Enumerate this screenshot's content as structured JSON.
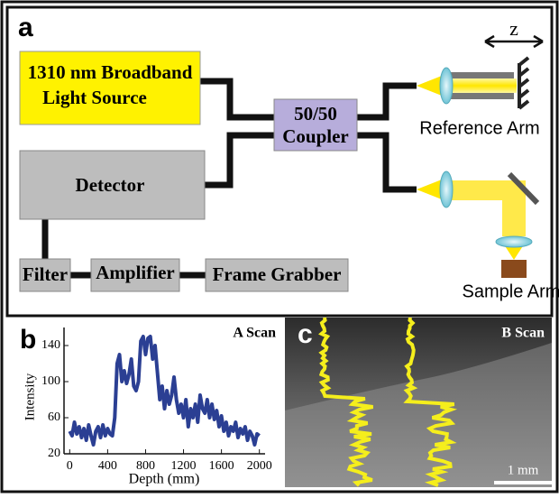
{
  "panel_a": {
    "label": "a",
    "nodes": [
      {
        "label": [
          "1310 nm Broadband",
          "Light Source"
        ]
      },
      {
        "label": [
          "50/50",
          "Coupler"
        ]
      },
      {
        "label": [
          "Detector"
        ]
      },
      {
        "label": [
          "Filter"
        ]
      },
      {
        "label": [
          "Amplifier"
        ]
      },
      {
        "label": [
          "Frame Grabber"
        ]
      }
    ],
    "z_label": "z",
    "reference_arm": "Reference Arm",
    "sample_arm": "Sample Arm"
  },
  "panel_b": {
    "label": "b"
  },
  "chart_data": {
    "type": "line",
    "title": "A Scan",
    "x_label": "Depth (mm)",
    "y_label": "Intensity",
    "x": [
      0,
      25,
      50,
      75,
      100,
      125,
      150,
      175,
      200,
      225,
      250,
      275,
      300,
      325,
      350,
      375,
      400,
      425,
      450,
      475,
      500,
      525,
      550,
      575,
      600,
      625,
      650,
      675,
      700,
      725,
      750,
      775,
      800,
      825,
      850,
      875,
      900,
      925,
      950,
      975,
      1000,
      1025,
      1050,
      1075,
      1100,
      1125,
      1150,
      1175,
      1200,
      1225,
      1250,
      1275,
      1300,
      1325,
      1350,
      1375,
      1400,
      1425,
      1450,
      1475,
      1500,
      1525,
      1550,
      1575,
      1600,
      1625,
      1650,
      1675,
      1700,
      1725,
      1750,
      1775,
      1800,
      1825,
      1850,
      1875,
      1900,
      1925,
      1950,
      1975,
      2000
    ],
    "series": [
      {
        "color": "#2b3f93",
        "values": [
          45,
          40,
          55,
          42,
          50,
          38,
          48,
          35,
          52,
          40,
          30,
          45,
          50,
          38,
          52,
          40,
          48,
          42,
          40,
          60,
          120,
          130,
          100,
          112,
          98,
          108,
          125,
          95,
          90,
          100,
          145,
          150,
          130,
          148,
          150,
          125,
          140,
          110,
          80,
          95,
          70,
          90,
          75,
          85,
          105,
          80,
          65,
          75,
          60,
          80,
          50,
          70,
          60,
          75,
          55,
          85,
          70,
          65,
          80,
          60,
          75,
          58,
          68,
          50,
          62,
          45,
          55,
          40,
          50,
          45,
          55,
          38,
          48,
          42,
          50,
          35,
          45,
          40,
          30,
          42,
          40
        ]
      }
    ],
    "xlim": [
      -60,
      2060
    ],
    "ylim": [
      20,
      160
    ],
    "xticks": [
      0,
      400,
      800,
      1200,
      1600,
      2000
    ],
    "yticks": [
      20,
      60,
      100,
      140
    ]
  },
  "panel_c": {
    "label": "c",
    "title": "B Scan",
    "scale_bar": "1 mm"
  }
}
